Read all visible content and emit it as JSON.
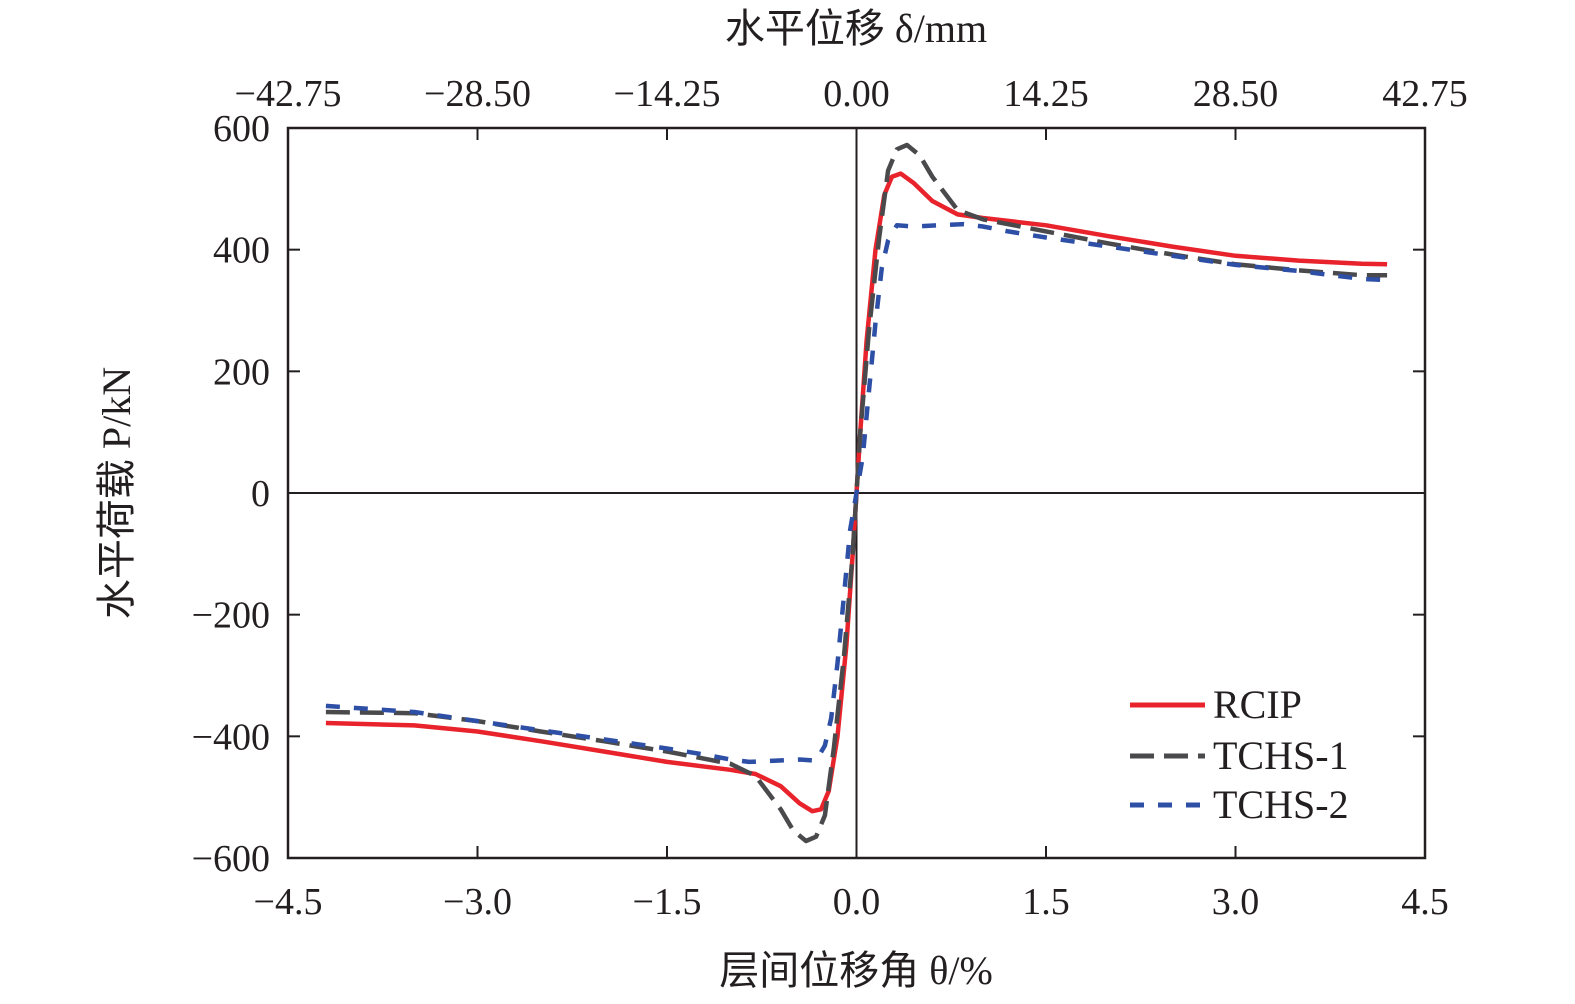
{
  "chart_data": {
    "type": "line",
    "xlabel": "层间位移角 θ/%",
    "ylabel": "水平荷载 P/kN",
    "top_xlabel": "水平位移 δ/mm",
    "xlim": [
      -4.5,
      4.5
    ],
    "ylim": [
      -600,
      600
    ],
    "top_xlim": [
      -42.75,
      42.75
    ],
    "x_ticks": [
      "−4.5",
      "−3.0",
      "−1.5",
      "0.0",
      "1.5",
      "3.0",
      "4.5"
    ],
    "y_ticks": [
      "−600",
      "−400",
      "−200",
      "0",
      "200",
      "400",
      "600"
    ],
    "top_x_ticks": [
      "−42.75",
      "−28.50",
      "−14.25",
      "0.00",
      "14.25",
      "28.50",
      "42.75"
    ],
    "legend_position": "bottom-right",
    "colors": {
      "RCIP": "#e8232b",
      "TCHS-1": "#4a4a4c",
      "TCHS-2": "#2e4fa6"
    },
    "series": [
      {
        "name": "RCIP",
        "style": "solid",
        "x": [
          -4.2,
          -3.5,
          -3.0,
          -2.5,
          -2.0,
          -1.5,
          -1.0,
          -0.8,
          -0.6,
          -0.45,
          -0.35,
          -0.28,
          -0.22,
          -0.15,
          -0.08,
          -0.03,
          0,
          0.03,
          0.08,
          0.15,
          0.22,
          0.28,
          0.35,
          0.45,
          0.6,
          0.8,
          1.0,
          1.5,
          2.0,
          2.5,
          3.0,
          3.5,
          4.0,
          4.2
        ],
        "y": [
          -378,
          -382,
          -392,
          -408,
          -425,
          -442,
          -455,
          -462,
          -482,
          -510,
          -523,
          -520,
          -490,
          -400,
          -250,
          -100,
          0,
          100,
          250,
          400,
          490,
          520,
          525,
          510,
          480,
          458,
          452,
          440,
          422,
          405,
          390,
          382,
          377,
          376
        ]
      },
      {
        "name": "TCHS-1",
        "style": "dashed",
        "x": [
          -4.2,
          -3.5,
          -3.0,
          -2.5,
          -2.0,
          -1.5,
          -1.0,
          -0.8,
          -0.6,
          -0.5,
          -0.4,
          -0.32,
          -0.25,
          -0.18,
          -0.1,
          -0.03,
          0,
          0.03,
          0.1,
          0.18,
          0.25,
          0.32,
          0.4,
          0.5,
          0.6,
          0.8,
          1.0,
          1.5,
          2.0,
          2.5,
          3.0,
          3.5,
          4.0,
          4.2
        ],
        "y": [
          -360,
          -362,
          -375,
          -392,
          -408,
          -425,
          -445,
          -465,
          -520,
          -555,
          -572,
          -565,
          -530,
          -420,
          -270,
          -100,
          0,
          100,
          270,
          420,
          530,
          565,
          572,
          555,
          520,
          465,
          450,
          430,
          410,
          392,
          376,
          366,
          358,
          358
        ]
      },
      {
        "name": "TCHS-2",
        "style": "dashed",
        "x": [
          -4.2,
          -3.5,
          -3.0,
          -2.5,
          -2.0,
          -1.5,
          -1.2,
          -1.0,
          -0.85,
          -0.65,
          -0.45,
          -0.32,
          -0.25,
          -0.2,
          -0.15,
          -0.1,
          -0.05,
          0,
          0.05,
          0.1,
          0.15,
          0.2,
          0.25,
          0.32,
          0.45,
          0.65,
          0.85,
          1.0,
          1.2,
          1.5,
          2.0,
          2.5,
          3.0,
          3.5,
          4.0,
          4.2
        ],
        "y": [
          -350,
          -360,
          -375,
          -390,
          -405,
          -420,
          -430,
          -438,
          -442,
          -440,
          -438,
          -440,
          -415,
          -370,
          -280,
          -170,
          -60,
          0,
          60,
          170,
          280,
          370,
          415,
          440,
          438,
          440,
          442,
          438,
          430,
          420,
          405,
          390,
          375,
          365,
          352,
          350
        ]
      }
    ]
  }
}
